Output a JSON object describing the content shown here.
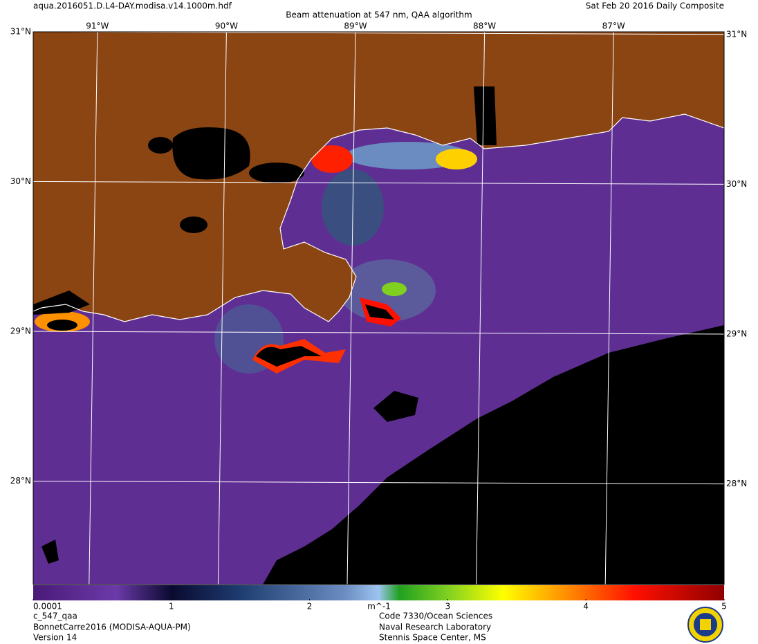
{
  "header": {
    "file": "aqua.2016051.D.L4-DAY.modisa.v14.1000m.hdf",
    "title": "Beam attenuation at 547 nm, QAA algorithm",
    "date": "Sat Feb 20 2016 Daily Composite"
  },
  "map": {
    "longitudes": [
      {
        "value": -91,
        "label": "91°W"
      },
      {
        "value": -90,
        "label": "90°W"
      },
      {
        "value": -89,
        "label": "89°W"
      },
      {
        "value": -88,
        "label": "88°W"
      },
      {
        "value": -87,
        "label": "87°W"
      }
    ],
    "latitudes": [
      {
        "value": 31,
        "label": "31°N"
      },
      {
        "value": 30,
        "label": "30°N"
      },
      {
        "value": 29,
        "label": "29°N"
      },
      {
        "value": 28,
        "label": "28°N"
      }
    ]
  },
  "colorbar": {
    "range": [
      0.0001,
      5
    ],
    "ticks": [
      0.0001,
      1,
      2,
      3,
      4,
      5
    ],
    "unit": "m^-1"
  },
  "footer": {
    "left": [
      "c_547_qaa",
      "BonnetCarre2016 (MODISA-AQUA-PM)",
      "Version 14"
    ],
    "right": [
      "Code 7330/Ocean Sciences",
      "Naval Research Laboratory",
      "Stennis Space Center, MS"
    ]
  }
}
